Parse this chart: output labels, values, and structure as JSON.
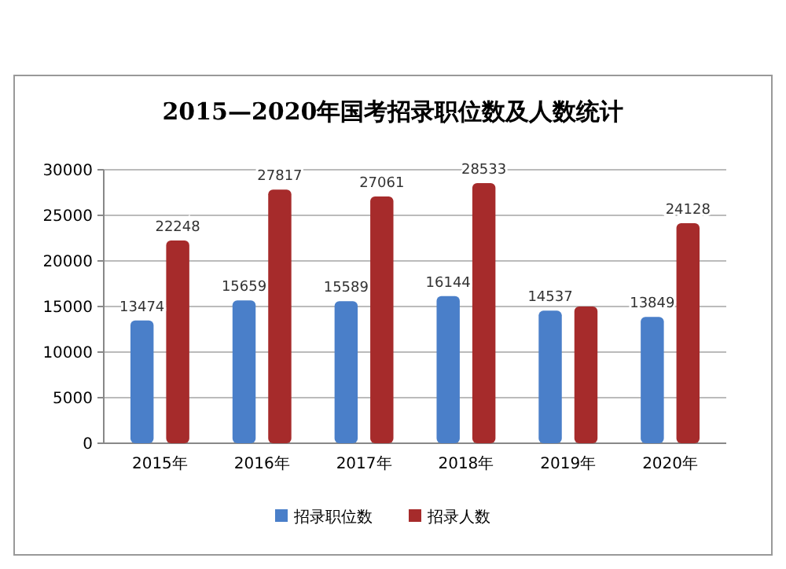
{
  "chart_data": {
    "type": "bar",
    "title": "2015—2020年国考招录职位数及人数统计",
    "categories": [
      "2015年",
      "2016年",
      "2017年",
      "2018年",
      "2019年",
      "2020年"
    ],
    "series": [
      {
        "name": "招录职位数",
        "color": "#4a7fc9",
        "values": [
          13474,
          15659,
          15589,
          16144,
          14537,
          13849
        ],
        "value_labels": [
          "13474",
          "15659",
          "15589",
          "16144",
          "14537",
          "13849"
        ]
      },
      {
        "name": "招录人数",
        "color": "#a62b2b",
        "values": [
          22248,
          27817,
          27061,
          28533,
          15000,
          24128
        ],
        "value_labels": [
          "22248",
          "27817",
          "27061",
          "28533",
          null,
          "24128"
        ]
      }
    ],
    "ylim": [
      0,
      30000
    ],
    "yticks": [
      0,
      5000,
      10000,
      15000,
      20000,
      25000,
      30000
    ],
    "grid": "y",
    "legend": "bottom"
  }
}
